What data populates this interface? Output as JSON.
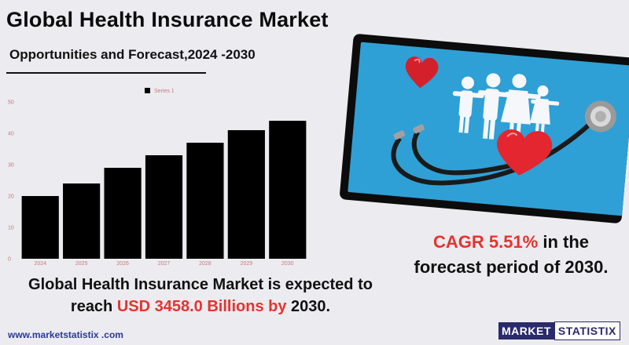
{
  "header": {
    "title": "Global Health Insurance Market",
    "subtitle": "Opportunities and Forecast,2024 -2030"
  },
  "chart_data": {
    "type": "bar",
    "categories": [
      "2024",
      "2025",
      "2026",
      "2027",
      "2028",
      "2029",
      "2030"
    ],
    "series": [
      {
        "name": "Series 1",
        "values": [
          20,
          24,
          29,
          33,
          37,
          41,
          44
        ]
      }
    ],
    "ylim": [
      0,
      50
    ],
    "yticks": [
      0,
      10,
      20,
      30,
      40,
      50
    ],
    "grid": false,
    "legend": "top",
    "colors": {
      "bar": "#000000",
      "tick_text": "#c47a7a"
    }
  },
  "cagr": {
    "label": "CAGR  5.51%",
    "text_after": " in the",
    "line2": "forecast period of 2030."
  },
  "summary": {
    "line1": "Global Health Insurance Market is expected to",
    "prefix": "reach ",
    "highlight": "USD  3458.0 Billions by",
    "suffix": " 2030."
  },
  "footer": {
    "url": "www.marketstatistix .com",
    "logo_part1": "MARKET",
    "logo_part2": "STATISTIX"
  },
  "colors": {
    "accent_red": "#e3342f",
    "photo_blue": "#2fa0d6",
    "logo_navy": "#2b2a6b",
    "background": "#ecebf0"
  },
  "icons": [
    "heart-icon",
    "family-paper-chain-icon",
    "stethoscope-icon"
  ]
}
